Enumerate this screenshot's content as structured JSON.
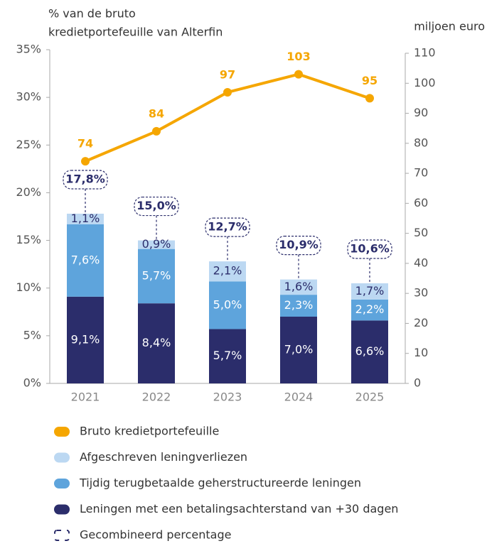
{
  "chart_data": {
    "type": "bar",
    "y_label": [
      "% van de bruto",
      "kredietportefeuille van Alterfin"
    ],
    "y2_label": "miljoen euro",
    "categories": [
      "2021",
      "2022",
      "2023",
      "2024",
      "2025"
    ],
    "ylim": [
      0,
      35
    ],
    "yticks": [
      {
        "value": 0,
        "label": "0%"
      },
      {
        "value": 5,
        "label": "5%"
      },
      {
        "value": 10,
        "label": "10%"
      },
      {
        "value": 15,
        "label": "15%"
      },
      {
        "value": 20,
        "label": "20%"
      },
      {
        "value": 25,
        "label": "25%"
      },
      {
        "value": 30,
        "label": "30%"
      },
      {
        "value": 35,
        "label": "35%"
      }
    ],
    "y2lim": [
      0,
      110
    ],
    "y2ticks": [
      0,
      10,
      20,
      30,
      40,
      50,
      60,
      70,
      80,
      90,
      100,
      110
    ],
    "series": [
      {
        "name": "Bruto kredietportefeuille",
        "type": "line",
        "axis": "y2",
        "color": "#f5a600",
        "values": [
          74,
          84,
          97,
          103,
          95
        ]
      },
      {
        "name": "Afgeschreven leningverliezen",
        "color": "#bcd8f2",
        "values": [
          1.1,
          0.9,
          2.1,
          1.6,
          1.7
        ],
        "value_labels": [
          "1,1%",
          "0,9%",
          "2,1%",
          "1,6%",
          "1,7%"
        ]
      },
      {
        "name": "Tijdig terugbetaalde geherstructureerde leningen",
        "color": "#5ea4dc",
        "values": [
          7.6,
          5.7,
          5.0,
          2.3,
          2.2
        ],
        "value_labels": [
          "7,6%",
          "5,7%",
          "5,0%",
          "2,3%",
          "2,2%"
        ]
      },
      {
        "name": "Leningen met een betalingsachterstand van +30 dagen",
        "color": "#2b2d6b",
        "values": [
          9.1,
          8.4,
          5.7,
          7.0,
          6.6
        ],
        "value_labels": [
          "9,1%",
          "8,4%",
          "5,7%",
          "7,0%",
          "6,6%"
        ]
      }
    ],
    "combined": {
      "name": "Gecombineerd percentage",
      "color": "#2b2d6b",
      "values": [
        17.8,
        15.0,
        12.7,
        10.9,
        10.6
      ],
      "value_labels": [
        "17,8%",
        "15,0%",
        "12,7%",
        "10,9%",
        "10,6%"
      ]
    }
  }
}
